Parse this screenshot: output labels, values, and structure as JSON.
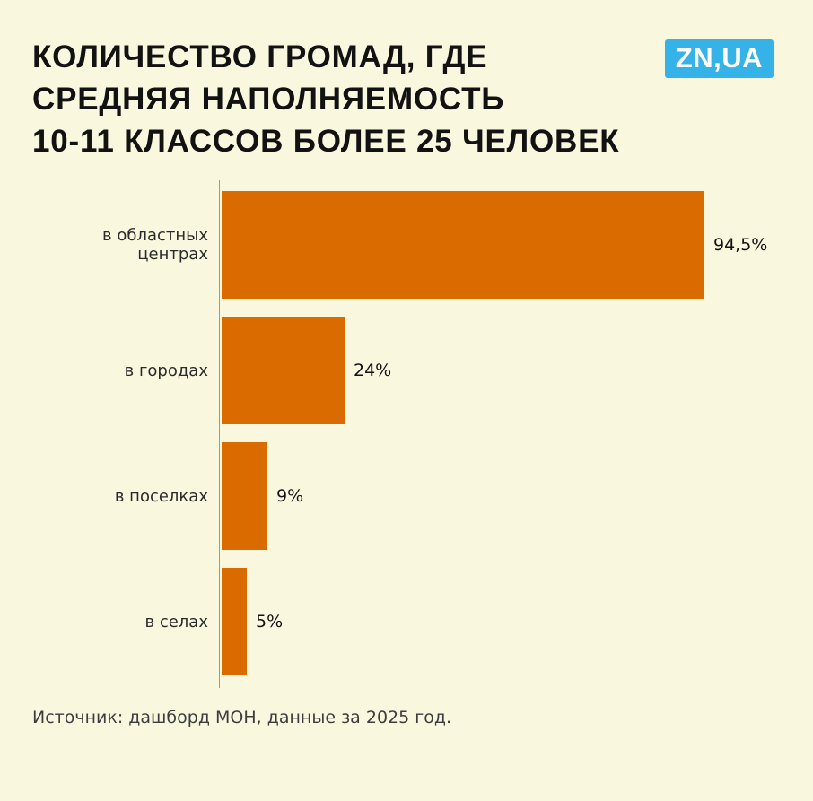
{
  "page": {
    "bg_color": "#FAF7DF",
    "title_lines": [
      "КОЛИЧЕСТВО ГРОМАД, ГДЕ",
      "СРЕДНЯЯ НАПОЛНЯЕМОСТЬ",
      "10-11 КЛАССОВ БОЛЕЕ 25 ЧЕЛОВЕК"
    ],
    "logo_text": "ZN,UA",
    "logo_color": "#35B2E8",
    "source": "Источник: дашборд МОН, данные за 2025 год."
  },
  "chart_data": {
    "type": "bar",
    "orientation": "horizontal",
    "title": "КОЛИЧЕСТВО ГРОМАД, ГДЕ СРЕДНЯЯ НАПОЛНЯЕМОСТЬ 10-11 КЛАССОВ БОЛЕЕ 25 ЧЕЛОВЕК",
    "categories": [
      "в областных центрах",
      "в городах",
      "в поселках",
      "в селах"
    ],
    "values": [
      94.5,
      24,
      9,
      5
    ],
    "value_labels": [
      "94,5%",
      "24%",
      "9%",
      "5%"
    ],
    "bar_color": "#D96B00",
    "xlim": [
      0,
      100
    ],
    "grid": false,
    "legend": false,
    "source": "Источник: дашборд МОН, данные за 2025 год."
  }
}
